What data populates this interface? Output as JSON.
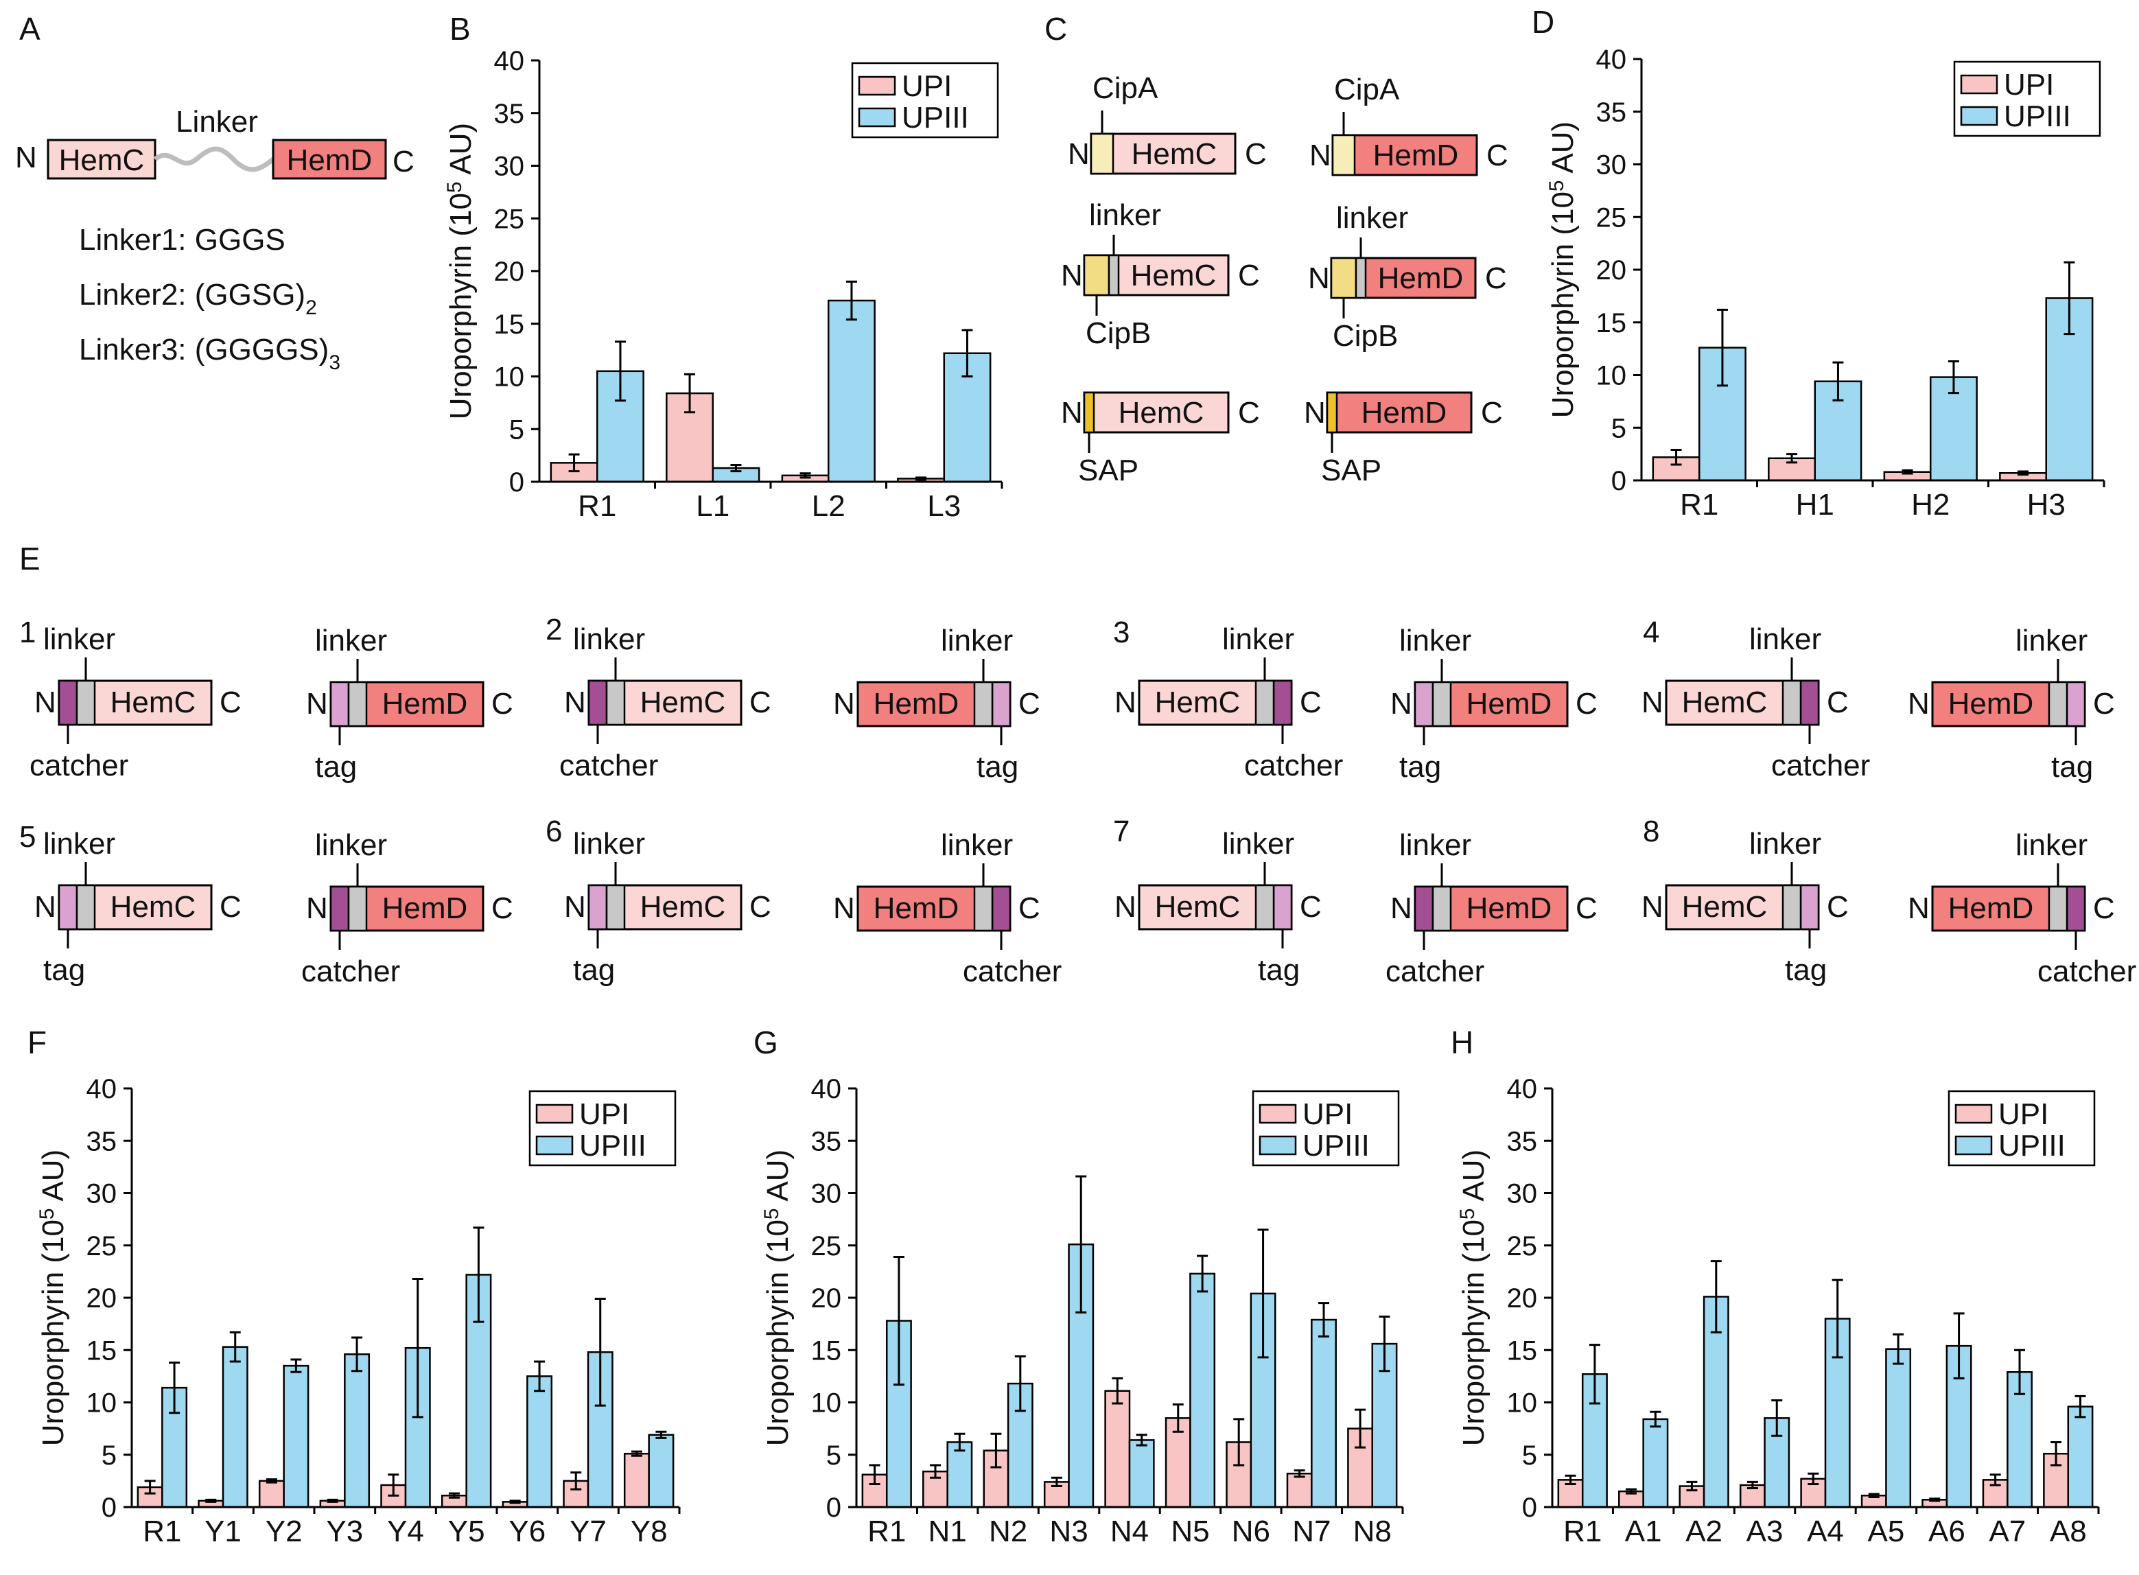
{
  "colors": {
    "upi": "#F9C5C4",
    "upiii": "#9ED9F1",
    "hemc": "#FAD6D5",
    "hemd": "#F2807E",
    "cipa": "#F7EDB8",
    "cipb": "#F3DD84",
    "sap": "#EDBF28",
    "linker_seg": "#C8C8C8",
    "catcher_seg": "#A24F94",
    "tag_seg": "#D9A2CF"
  },
  "panel_labels": [
    "A",
    "B",
    "C",
    "D",
    "E",
    "F",
    "G",
    "H"
  ],
  "panel_a": {
    "n_label": "N",
    "c_label": "C",
    "hemc": "HemC",
    "hemd": "HemD",
    "linker_label": "Linker",
    "linkers": [
      {
        "name": "Linker1: GGGS",
        "sub": ""
      },
      {
        "name": "Linker2: (GGSG)",
        "sub": "2"
      },
      {
        "name": "Linker3: (GGGGS)",
        "sub": "3"
      }
    ]
  },
  "panel_c": {
    "constructs": [
      {
        "domain": "HemC",
        "tag": "CipA"
      },
      {
        "domain": "HemD",
        "tag": "CipA"
      },
      {
        "domain": "HemC",
        "tag": "CipB",
        "linker": "linker"
      },
      {
        "domain": "HemD",
        "tag": "CipB",
        "linker": "linker"
      },
      {
        "domain": "HemC",
        "tag": "SAP"
      },
      {
        "domain": "HemD",
        "tag": "SAP"
      }
    ]
  },
  "panel_e": {
    "groups": [
      "1",
      "2",
      "3",
      "4",
      "5",
      "6",
      "7",
      "8"
    ],
    "words": {
      "linker": "linker",
      "catcher": "catcher",
      "tag": "tag",
      "n": "N",
      "c": "C"
    },
    "constructs": [
      {
        "domain": "HemC",
        "attach": "catcher",
        "end": "N"
      },
      {
        "domain": "HemD",
        "attach": "tag",
        "end": "N"
      },
      {
        "domain": "HemC",
        "attach": "catcher",
        "end": "N"
      },
      {
        "domain": "HemD",
        "attach": "tag",
        "end": "C"
      },
      {
        "domain": "HemC",
        "attach": "catcher",
        "end": "C"
      },
      {
        "domain": "HemD",
        "attach": "tag",
        "end": "N"
      },
      {
        "domain": "HemC",
        "attach": "catcher",
        "end": "C"
      },
      {
        "domain": "HemD",
        "attach": "tag",
        "end": "C"
      },
      {
        "domain": "HemC",
        "attach": "tag",
        "end": "N"
      },
      {
        "domain": "HemD",
        "attach": "catcher",
        "end": "N"
      },
      {
        "domain": "HemC",
        "attach": "tag",
        "end": "N"
      },
      {
        "domain": "HemD",
        "attach": "catcher",
        "end": "C"
      },
      {
        "domain": "HemC",
        "attach": "tag",
        "end": "C"
      },
      {
        "domain": "HemD",
        "attach": "catcher",
        "end": "N"
      },
      {
        "domain": "HemC",
        "attach": "tag",
        "end": "C"
      },
      {
        "domain": "HemD",
        "attach": "catcher",
        "end": "C"
      }
    ]
  },
  "chart_data": [
    {
      "panel": "B",
      "type": "bar",
      "categories": [
        "R1",
        "L1",
        "L2",
        "L3"
      ],
      "series": [
        {
          "name": "UPI",
          "values": [
            1.8,
            8.4,
            0.6,
            0.3
          ],
          "errors": [
            0.8,
            1.8,
            0.2,
            0.1
          ]
        },
        {
          "name": "UPIII",
          "values": [
            10.5,
            1.3,
            17.2,
            12.2
          ],
          "errors": [
            2.8,
            0.3,
            1.8,
            2.2
          ]
        }
      ],
      "ylabel": "Uroporphyrin (10",
      "ylabel_sup": "5",
      "ylabel_end": " AU)",
      "ylim": [
        0,
        40
      ],
      "yticks": [
        0,
        5,
        10,
        15,
        20,
        25,
        30,
        35,
        40
      ],
      "legend": "top-right"
    },
    {
      "panel": "D",
      "type": "bar",
      "categories": [
        "R1",
        "H1",
        "H2",
        "H3"
      ],
      "series": [
        {
          "name": "UPI",
          "values": [
            2.2,
            2.1,
            0.8,
            0.7
          ],
          "errors": [
            0.7,
            0.4,
            0.15,
            0.15
          ]
        },
        {
          "name": "UPIII",
          "values": [
            12.6,
            9.4,
            9.8,
            17.3
          ],
          "errors": [
            3.6,
            1.8,
            1.5,
            3.4
          ]
        }
      ],
      "ylabel": "Uroporphyrin (10",
      "ylabel_sup": "5",
      "ylabel_end": " AU)",
      "ylim": [
        0,
        40
      ],
      "yticks": [
        0,
        5,
        10,
        15,
        20,
        25,
        30,
        35,
        40
      ],
      "legend": "top-right"
    },
    {
      "panel": "F",
      "type": "bar",
      "categories": [
        "R1",
        "Y1",
        "Y2",
        "Y3",
        "Y4",
        "Y5",
        "Y6",
        "Y7",
        "Y8"
      ],
      "series": [
        {
          "name": "UPI",
          "values": [
            1.9,
            0.6,
            2.5,
            0.6,
            2.1,
            1.1,
            0.5,
            2.5,
            5.1
          ],
          "errors": [
            0.6,
            0.1,
            0.15,
            0.1,
            1.0,
            0.2,
            0.1,
            0.8,
            0.2
          ]
        },
        {
          "name": "UPIII",
          "values": [
            11.4,
            15.3,
            13.5,
            14.6,
            15.2,
            22.2,
            12.5,
            14.8,
            6.9
          ],
          "errors": [
            2.4,
            1.4,
            0.6,
            1.6,
            6.6,
            4.5,
            1.4,
            5.1,
            0.3
          ]
        }
      ],
      "ylabel": "Uroporphyrin (10",
      "ylabel_sup": "5",
      "ylabel_end": " AU)",
      "ylim": [
        0,
        40
      ],
      "yticks": [
        0,
        5,
        10,
        15,
        20,
        25,
        30,
        35,
        40
      ],
      "legend": "top-right"
    },
    {
      "panel": "G",
      "type": "bar",
      "categories": [
        "R1",
        "N1",
        "N2",
        "N3",
        "N4",
        "N5",
        "N6",
        "N7",
        "N8"
      ],
      "series": [
        {
          "name": "UPI",
          "values": [
            3.1,
            3.4,
            5.4,
            2.4,
            11.1,
            8.5,
            6.2,
            3.2,
            7.5
          ],
          "errors": [
            0.9,
            0.6,
            1.6,
            0.4,
            1.2,
            1.3,
            2.2,
            0.3,
            1.8
          ]
        },
        {
          "name": "UPIII",
          "values": [
            17.8,
            6.2,
            11.8,
            25.1,
            6.4,
            22.3,
            20.4,
            17.9,
            15.6
          ],
          "errors": [
            6.1,
            0.8,
            2.6,
            6.5,
            0.5,
            1.7,
            6.1,
            1.6,
            2.6
          ]
        }
      ],
      "ylabel": "Uroporphyrin (10",
      "ylabel_sup": "5",
      "ylabel_end": " AU)",
      "ylim": [
        0,
        40
      ],
      "yticks": [
        0,
        5,
        10,
        15,
        20,
        25,
        30,
        35,
        40
      ],
      "legend": "top-right"
    },
    {
      "panel": "H",
      "type": "bar",
      "categories": [
        "R1",
        "A1",
        "A2",
        "A3",
        "A4",
        "A5",
        "A6",
        "A7",
        "A8"
      ],
      "series": [
        {
          "name": "UPI",
          "values": [
            2.6,
            1.5,
            2.0,
            2.1,
            2.7,
            1.1,
            0.7,
            2.6,
            5.1
          ],
          "errors": [
            0.4,
            0.2,
            0.4,
            0.3,
            0.5,
            0.15,
            0.1,
            0.5,
            1.1
          ]
        },
        {
          "name": "UPIII",
          "values": [
            12.7,
            8.4,
            20.1,
            8.5,
            18.0,
            15.1,
            15.4,
            12.9,
            9.6
          ],
          "errors": [
            2.8,
            0.7,
            3.4,
            1.7,
            3.7,
            1.4,
            3.1,
            2.1,
            1.0
          ]
        }
      ],
      "ylabel": "Uroporphyrin (10",
      "ylabel_sup": "5",
      "ylabel_end": " AU)",
      "ylim": [
        0,
        40
      ],
      "yticks": [
        0,
        5,
        10,
        15,
        20,
        25,
        30,
        35,
        40
      ],
      "legend": "top-right"
    }
  ]
}
